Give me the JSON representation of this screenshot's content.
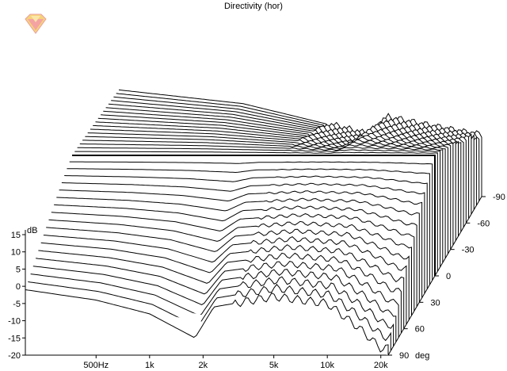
{
  "chart_data": {
    "type": "line",
    "title": "Directivity (hor)",
    "y_unit_label": "dB",
    "depth_unit_label": "deg",
    "ylim": [
      -20,
      15
    ],
    "y_ticks": [
      15,
      10,
      5,
      0,
      -5,
      -10,
      -15,
      -20
    ],
    "x_scale": "log",
    "xlim_hz": [
      200,
      22000
    ],
    "x_ticks": [
      {
        "value": 500,
        "label": "500Hz"
      },
      {
        "value": 1000,
        "label": "1k"
      },
      {
        "value": 2000,
        "label": "2k"
      },
      {
        "value": 5000,
        "label": "5k"
      },
      {
        "value": 10000,
        "label": "10k"
      },
      {
        "value": 20000,
        "label": "20k"
      }
    ],
    "depth_range_deg": [
      90,
      -90
    ],
    "depth_step_deg": 5,
    "depth_ticks": [
      {
        "value": 90,
        "label": "90"
      },
      {
        "value": 60,
        "label": "60"
      },
      {
        "value": 30,
        "label": "30"
      },
      {
        "value": 0,
        "label": "0"
      },
      {
        "value": -30,
        "label": "-30"
      },
      {
        "value": -60,
        "label": "-60"
      },
      {
        "value": -90,
        "label": "-90"
      }
    ],
    "highlighted_angle_deg": 0,
    "series_shape": {
      "front_curve_90deg": [
        [
          200,
          -1
        ],
        [
          500,
          -4
        ],
        [
          1000,
          -8
        ],
        [
          1800,
          -15
        ],
        [
          2300,
          -6
        ],
        [
          5000,
          -3
        ],
        [
          10000,
          -5
        ],
        [
          15000,
          -12
        ],
        [
          20000,
          -18
        ]
      ],
      "on_axis_0deg": [
        [
          200,
          15
        ],
        [
          1000,
          15
        ],
        [
          5000,
          15
        ],
        [
          10000,
          15
        ],
        [
          20000,
          15
        ]
      ],
      "back_curve_minus90deg": [
        [
          200,
          11
        ],
        [
          1000,
          7
        ],
        [
          3000,
          1
        ],
        [
          5000,
          -2
        ],
        [
          5500,
          -3
        ],
        [
          6500,
          3
        ],
        [
          10000,
          1
        ],
        [
          20000,
          -2
        ]
      ]
    }
  },
  "logo": {
    "name": "app-logo",
    "colors": [
      "#f4a3a3",
      "#f7d27a",
      "#e05050"
    ]
  }
}
